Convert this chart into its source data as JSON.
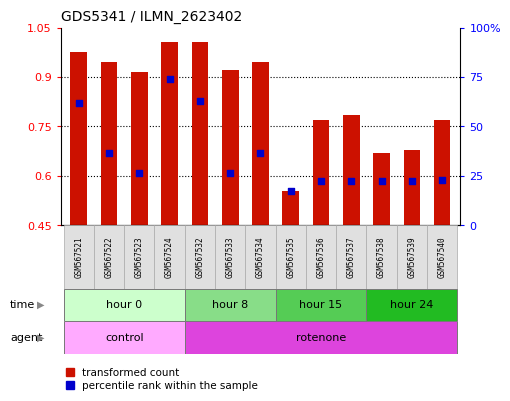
{
  "title": "GDS5341 / ILMN_2623402",
  "samples": [
    "GSM567521",
    "GSM567522",
    "GSM567523",
    "GSM567524",
    "GSM567532",
    "GSM567533",
    "GSM567534",
    "GSM567535",
    "GSM567536",
    "GSM567537",
    "GSM567538",
    "GSM567539",
    "GSM567540"
  ],
  "bar_heights": [
    0.975,
    0.945,
    0.915,
    1.005,
    1.005,
    0.92,
    0.945,
    0.555,
    0.77,
    0.785,
    0.67,
    0.68,
    0.77
  ],
  "blue_dot_positions": [
    0.82,
    0.668,
    0.608,
    0.893,
    0.828,
    0.608,
    0.668,
    0.553,
    0.583,
    0.583,
    0.583,
    0.583,
    0.588
  ],
  "ylim_left": [
    0.45,
    1.05
  ],
  "ylim_right": [
    0,
    100
  ],
  "yticks_left": [
    0.45,
    0.6,
    0.75,
    0.9,
    1.05
  ],
  "yticks_right": [
    0,
    25,
    50,
    75,
    100
  ],
  "ytick_labels_left": [
    "0.45",
    "0.6",
    "0.75",
    "0.9",
    "1.05"
  ],
  "ytick_labels_right": [
    "0",
    "25",
    "50",
    "75",
    "100%"
  ],
  "bar_color": "#cc1100",
  "dot_color": "#0000cc",
  "gridline_y": [
    0.6,
    0.75,
    0.9
  ],
  "time_groups": [
    {
      "label": "hour 0",
      "start": 0,
      "end": 4,
      "color": "#ccffcc"
    },
    {
      "label": "hour 8",
      "start": 4,
      "end": 7,
      "color": "#88dd88"
    },
    {
      "label": "hour 15",
      "start": 7,
      "end": 10,
      "color": "#55cc55"
    },
    {
      "label": "hour 24",
      "start": 10,
      "end": 13,
      "color": "#22bb22"
    }
  ],
  "agent_groups": [
    {
      "label": "control",
      "start": 0,
      "end": 4,
      "color": "#ffaaff"
    },
    {
      "label": "rotenone",
      "start": 4,
      "end": 13,
      "color": "#dd44dd"
    }
  ],
  "legend_items": [
    {
      "label": "transformed count",
      "color": "#cc1100"
    },
    {
      "label": "percentile rank within the sample",
      "color": "#0000cc"
    }
  ],
  "bar_width": 0.55,
  "dot_size": 22,
  "background_color": "#ffffff"
}
